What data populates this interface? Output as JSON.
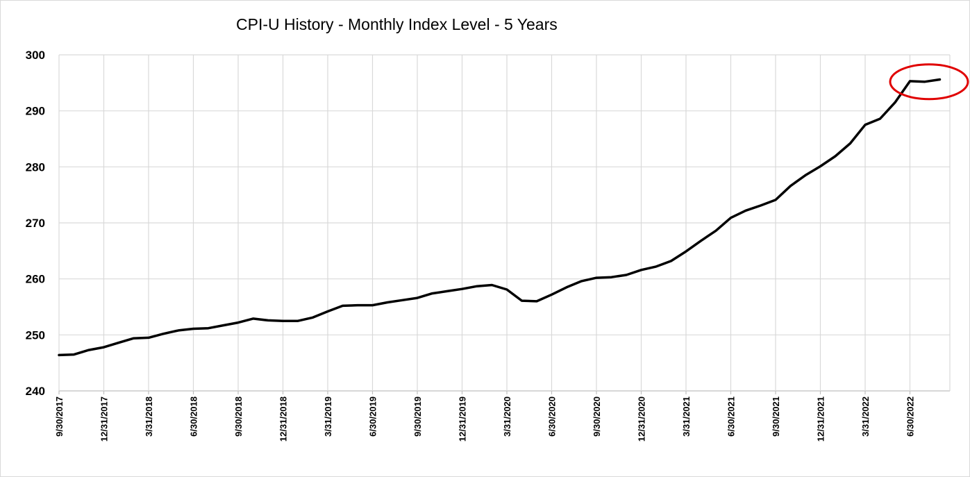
{
  "chart_data": {
    "type": "line",
    "title": "CPI-U History - Monthly Index Level - 5 Years",
    "xlabel": "",
    "ylabel": "",
    "ylim": [
      240,
      300
    ],
    "yticks": [
      240,
      250,
      260,
      270,
      280,
      290,
      300
    ],
    "xtick_labels": [
      "9/30/2017",
      "12/31/2017",
      "3/31/2018",
      "6/30/2018",
      "9/30/2018",
      "12/31/2018",
      "3/31/2019",
      "6/30/2019",
      "9/30/2019",
      "12/31/2019",
      "3/31/2020",
      "6/30/2020",
      "9/30/2020",
      "12/31/2020",
      "3/31/2021",
      "6/30/2021",
      "9/30/2021",
      "12/31/2021",
      "3/31/2022",
      "6/30/2022"
    ],
    "grid": true,
    "legend": "none",
    "series": [
      {
        "color": "#000000",
        "values": [
          246.4,
          246.5,
          247.3,
          247.8,
          248.6,
          249.4,
          249.5,
          250.2,
          250.8,
          251.1,
          251.2,
          251.7,
          252.2,
          252.9,
          252.6,
          252.5,
          252.5,
          253.1,
          254.2,
          255.2,
          255.3,
          255.3,
          255.8,
          256.2,
          256.6,
          257.4,
          257.8,
          258.2,
          258.7,
          258.9,
          258.1,
          256.1,
          256.0,
          257.2,
          258.5,
          259.6,
          260.2,
          260.3,
          260.7,
          261.6,
          262.2,
          263.2,
          264.9,
          266.8,
          268.6,
          270.9,
          272.2,
          273.1,
          274.1,
          276.6,
          278.5,
          280.1,
          281.9,
          284.2,
          287.5,
          288.6,
          291.5,
          295.3,
          295.2,
          295.6
        ]
      }
    ],
    "annotations": [
      {
        "type": "ellipse",
        "color": "#e00000",
        "around": "last three points (Jun–Aug 2022)"
      }
    ]
  }
}
